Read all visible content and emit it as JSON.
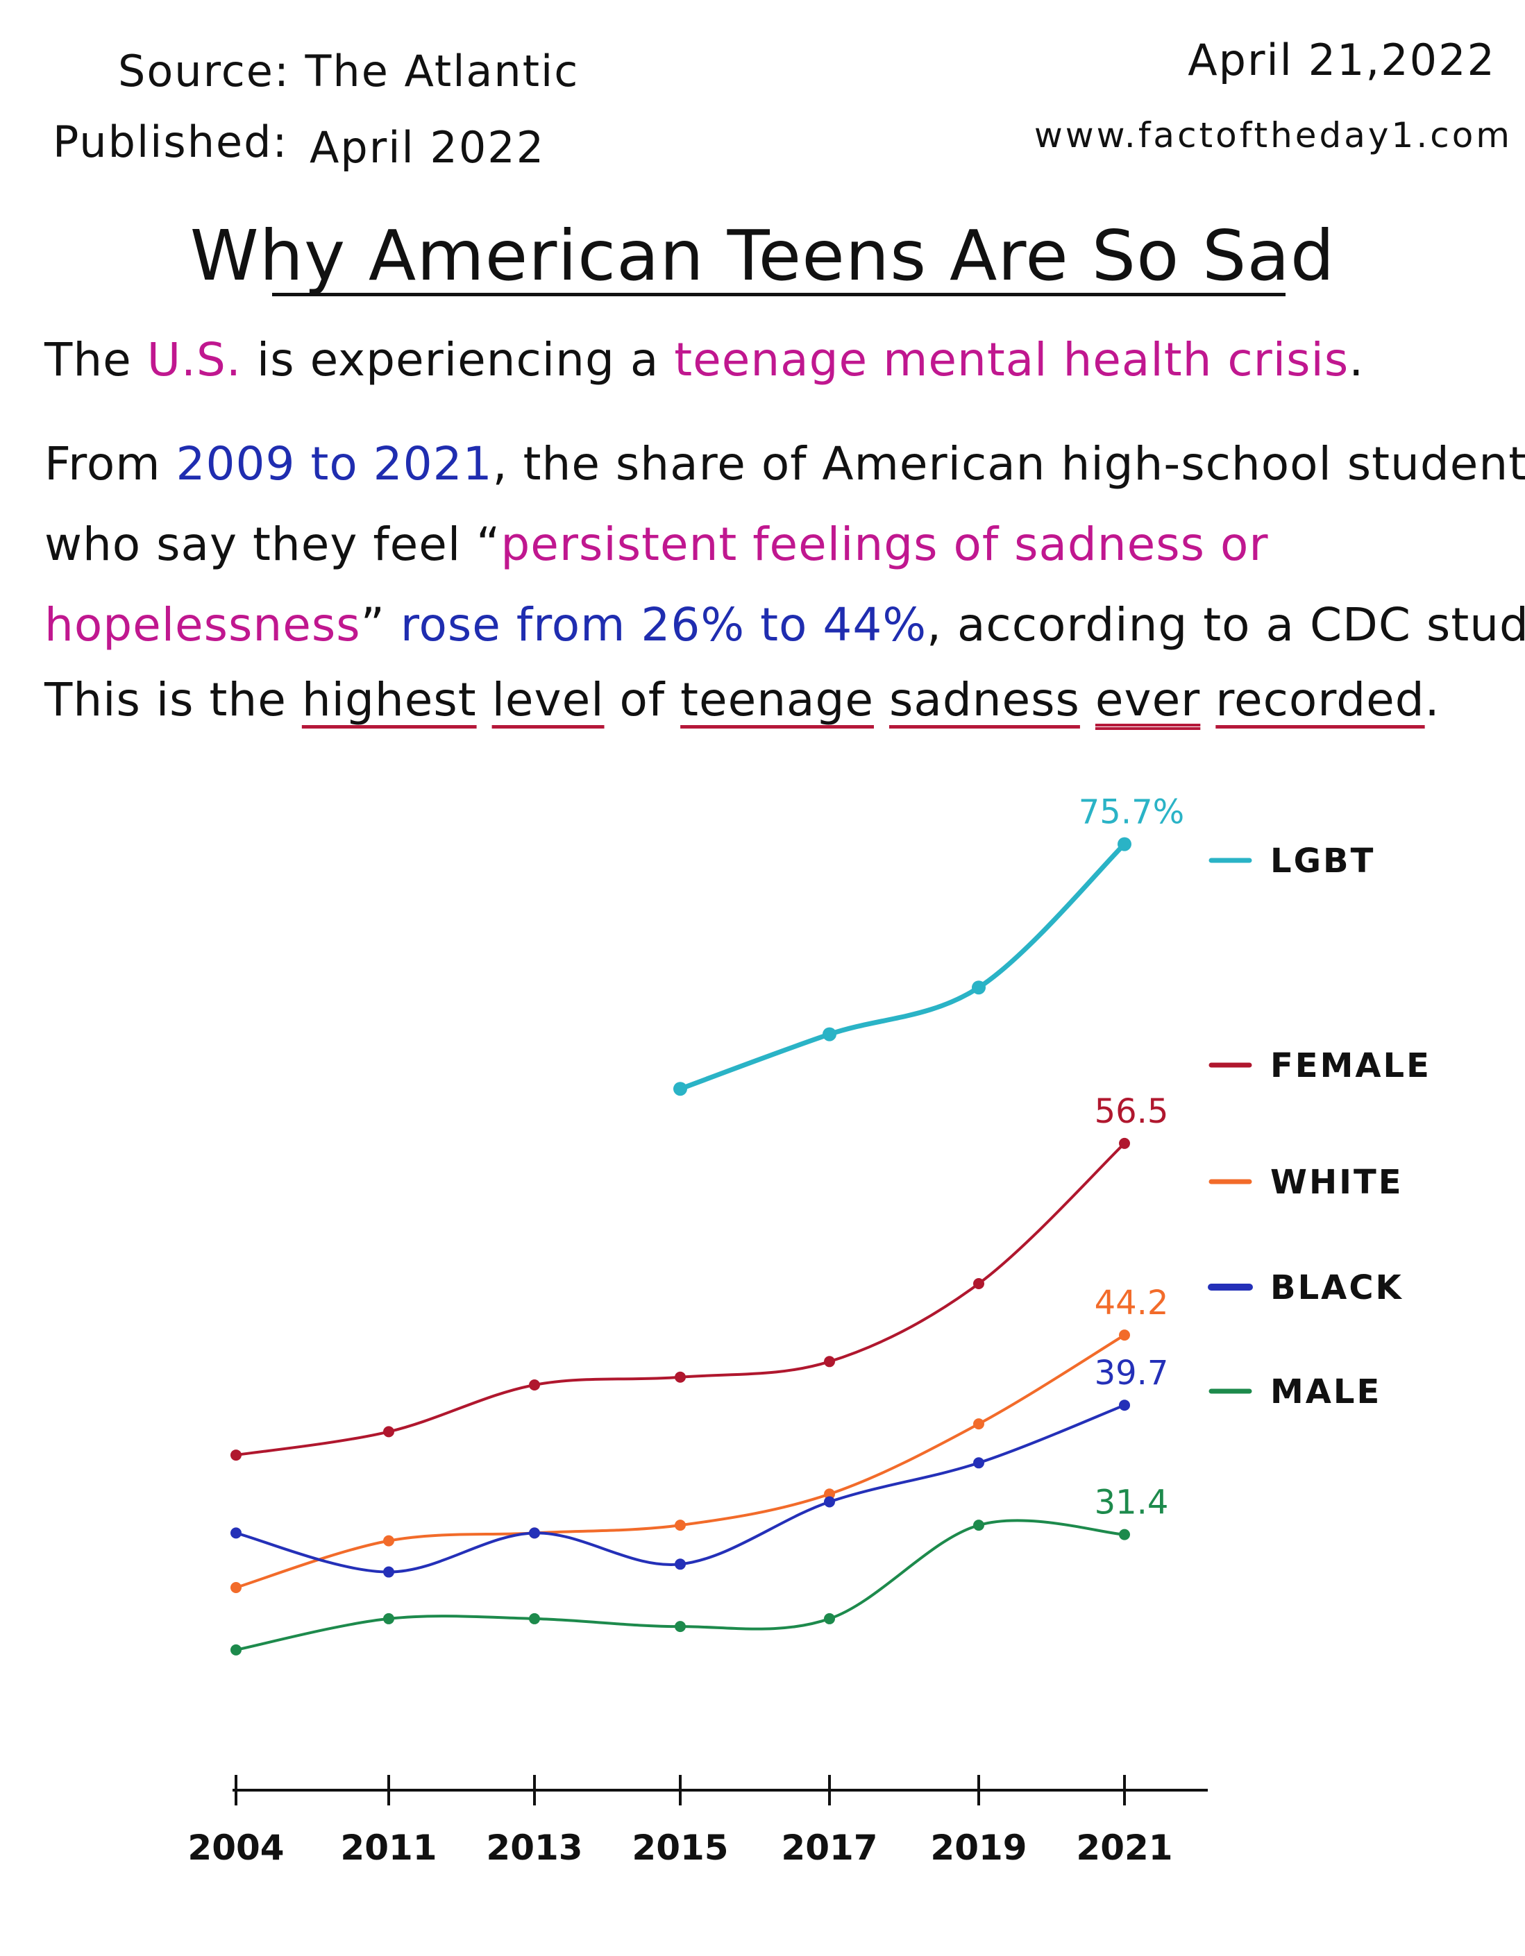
{
  "header": {
    "source": "Source: The Atlantic",
    "published_label": "Published:",
    "published_value": "April 2022",
    "date": "April 21,2022",
    "url": "www.factoftheday1.com"
  },
  "title": "Why American Teens Are So Sad",
  "paragraph1": {
    "a": "The ",
    "b": "U.S.",
    "c": " is experiencing a ",
    "d": "teenage mental health crisis",
    "e": "."
  },
  "paragraph2": {
    "line1_a": "From ",
    "line1_b": "2009 to 2021",
    "line1_c": ", the share of American high-school students",
    "line2_a": "who say they feel “",
    "line2_b": "persistent feelings of sadness or",
    "line3_a": "hopelessness",
    "line3_b": "” ",
    "line3_c": "rose from 26% to 44%",
    "line3_d": ", according to a CDC study.",
    "line4_a": "This is the ",
    "line4_b": "highest",
    "line4_c": "level",
    "line4_d": " of ",
    "line4_e": "teenage",
    "line4_f": "sadness",
    "line4_g": "ever",
    "line4_h": "recorded",
    "line4_i": "."
  },
  "chart_data": {
    "type": "line",
    "x": [
      "2004",
      "2011",
      "2013",
      "2015",
      "2017",
      "2019",
      "2021"
    ],
    "ylim": [
      15,
      80
    ],
    "grid": false,
    "legend_placement": "right",
    "series": [
      {
        "name": "LGBT",
        "color": "#2ab3c6",
        "values": [
          null,
          null,
          null,
          60.0,
          63.5,
          66.5,
          75.7
        ],
        "end_label": "75.7%"
      },
      {
        "name": "FEMALE",
        "color": "#b0172e",
        "values": [
          36.5,
          38.0,
          41.0,
          41.5,
          42.5,
          47.5,
          56.5
        ],
        "end_label": "56.5"
      },
      {
        "name": "WHITE",
        "color": "#f26b2a",
        "values": [
          28.0,
          31.0,
          31.5,
          32.0,
          34.0,
          38.5,
          44.2
        ],
        "end_label": "44.2"
      },
      {
        "name": "BLACK",
        "color": "#2430b8",
        "values": [
          31.5,
          29.0,
          31.5,
          29.5,
          33.5,
          36.0,
          39.7
        ],
        "end_label": "39.7"
      },
      {
        "name": "MALE",
        "color": "#1d8a4c",
        "values": [
          24.0,
          26.0,
          26.0,
          25.5,
          26.0,
          32.0,
          31.4
        ],
        "end_label": "31.4"
      }
    ]
  }
}
